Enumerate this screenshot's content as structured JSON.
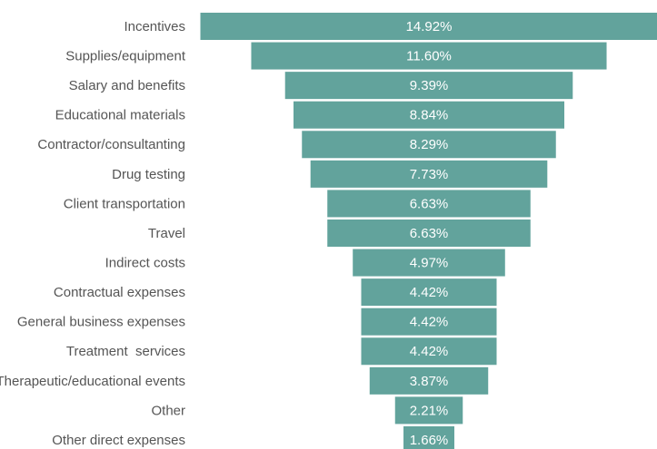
{
  "chart_data": {
    "type": "funnel",
    "categories": [
      "Incentives",
      "Supplies/equipment",
      "Salary and benefits",
      "Educational materials",
      "Contractor/consultanting",
      "Drug testing",
      "Client transportation",
      "Travel",
      "Indirect costs",
      "Contractual expenses",
      "General business expenses",
      "Treatment  services",
      "Therapeutic/educational events",
      "Other",
      "Other direct expenses"
    ],
    "values": [
      14.92,
      11.6,
      9.39,
      8.84,
      8.29,
      7.73,
      6.63,
      6.63,
      4.97,
      4.42,
      4.42,
      4.42,
      3.87,
      2.21,
      1.66
    ],
    "value_labels": [
      "14.92%",
      "11.60%",
      "9.39%",
      "8.84%",
      "8.29%",
      "7.73%",
      "6.63%",
      "6.63%",
      "4.97%",
      "4.42%",
      "4.42%",
      "4.42%",
      "3.87%",
      "2.21%",
      "1.66%"
    ],
    "color": "#62a39c"
  }
}
